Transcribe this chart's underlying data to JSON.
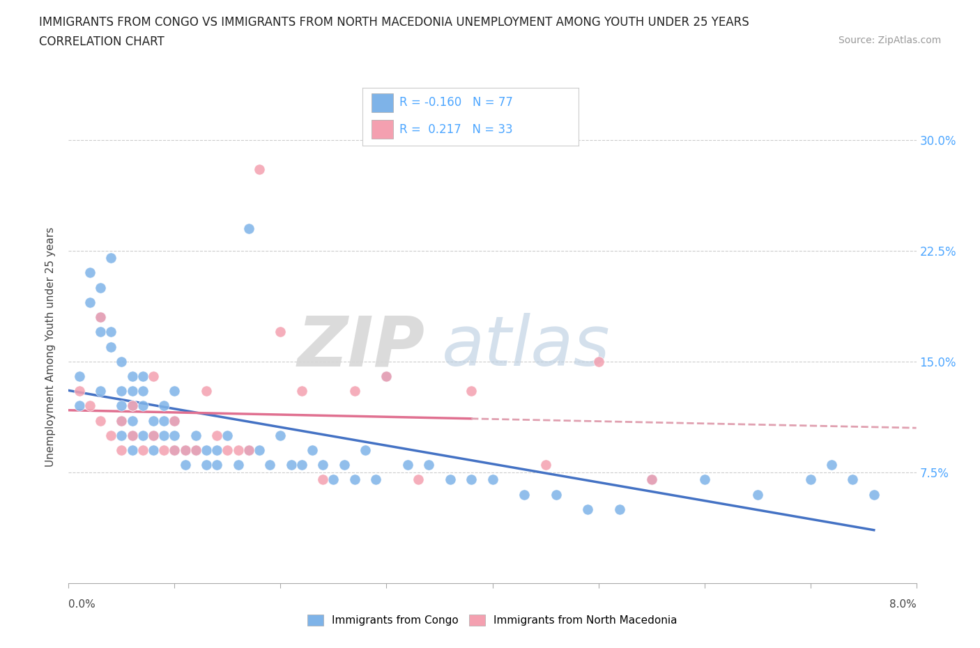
{
  "title_line1": "IMMIGRANTS FROM CONGO VS IMMIGRANTS FROM NORTH MACEDONIA UNEMPLOYMENT AMONG YOUTH UNDER 25 YEARS",
  "title_line2": "CORRELATION CHART",
  "source": "Source: ZipAtlas.com",
  "ylabel": "Unemployment Among Youth under 25 years",
  "xlim": [
    0.0,
    0.08
  ],
  "ylim": [
    0.0,
    0.32
  ],
  "yticks_right": [
    0.075,
    0.15,
    0.225,
    0.3
  ],
  "ytick_labels_right": [
    "7.5%",
    "15.0%",
    "22.5%",
    "30.0%"
  ],
  "xticks": [
    0.0,
    0.01,
    0.02,
    0.03,
    0.04,
    0.05,
    0.06,
    0.07,
    0.08
  ],
  "xtick_edge_labels": [
    "0.0%",
    "8.0%"
  ],
  "congo_color": "#7eb3e8",
  "north_mac_color": "#f4a0b0",
  "trend_color_congo": "#4472c4",
  "trend_color_north_mac": "#e07090",
  "trend_dashed_color_north_mac": "#e0a0b0",
  "grid_color": "#cccccc",
  "congo_x": [
    0.001,
    0.001,
    0.002,
    0.002,
    0.003,
    0.003,
    0.003,
    0.003,
    0.004,
    0.004,
    0.004,
    0.005,
    0.005,
    0.005,
    0.005,
    0.005,
    0.006,
    0.006,
    0.006,
    0.006,
    0.006,
    0.006,
    0.007,
    0.007,
    0.007,
    0.007,
    0.008,
    0.008,
    0.008,
    0.009,
    0.009,
    0.009,
    0.01,
    0.01,
    0.01,
    0.01,
    0.011,
    0.011,
    0.012,
    0.012,
    0.013,
    0.013,
    0.014,
    0.014,
    0.015,
    0.016,
    0.017,
    0.017,
    0.018,
    0.019,
    0.02,
    0.021,
    0.022,
    0.023,
    0.024,
    0.025,
    0.026,
    0.027,
    0.028,
    0.029,
    0.03,
    0.032,
    0.034,
    0.036,
    0.038,
    0.04,
    0.043,
    0.046,
    0.049,
    0.052,
    0.055,
    0.06,
    0.065,
    0.07,
    0.072,
    0.074,
    0.076
  ],
  "congo_y": [
    0.12,
    0.14,
    0.19,
    0.21,
    0.18,
    0.2,
    0.17,
    0.13,
    0.17,
    0.16,
    0.22,
    0.15,
    0.13,
    0.1,
    0.12,
    0.11,
    0.13,
    0.12,
    0.11,
    0.1,
    0.14,
    0.09,
    0.14,
    0.13,
    0.12,
    0.1,
    0.11,
    0.1,
    0.09,
    0.12,
    0.11,
    0.1,
    0.1,
    0.09,
    0.11,
    0.13,
    0.09,
    0.08,
    0.1,
    0.09,
    0.09,
    0.08,
    0.08,
    0.09,
    0.1,
    0.08,
    0.24,
    0.09,
    0.09,
    0.08,
    0.1,
    0.08,
    0.08,
    0.09,
    0.08,
    0.07,
    0.08,
    0.07,
    0.09,
    0.07,
    0.14,
    0.08,
    0.08,
    0.07,
    0.07,
    0.07,
    0.06,
    0.06,
    0.05,
    0.05,
    0.07,
    0.07,
    0.06,
    0.07,
    0.08,
    0.07,
    0.06
  ],
  "north_mac_x": [
    0.001,
    0.002,
    0.003,
    0.003,
    0.004,
    0.005,
    0.005,
    0.006,
    0.006,
    0.007,
    0.008,
    0.008,
    0.009,
    0.01,
    0.01,
    0.011,
    0.012,
    0.013,
    0.014,
    0.015,
    0.016,
    0.017,
    0.018,
    0.02,
    0.022,
    0.024,
    0.027,
    0.03,
    0.033,
    0.038,
    0.045,
    0.05,
    0.055
  ],
  "north_mac_y": [
    0.13,
    0.12,
    0.11,
    0.18,
    0.1,
    0.11,
    0.09,
    0.12,
    0.1,
    0.09,
    0.1,
    0.14,
    0.09,
    0.11,
    0.09,
    0.09,
    0.09,
    0.13,
    0.1,
    0.09,
    0.09,
    0.09,
    0.28,
    0.17,
    0.13,
    0.07,
    0.13,
    0.14,
    0.07,
    0.13,
    0.08,
    0.15,
    0.07
  ]
}
